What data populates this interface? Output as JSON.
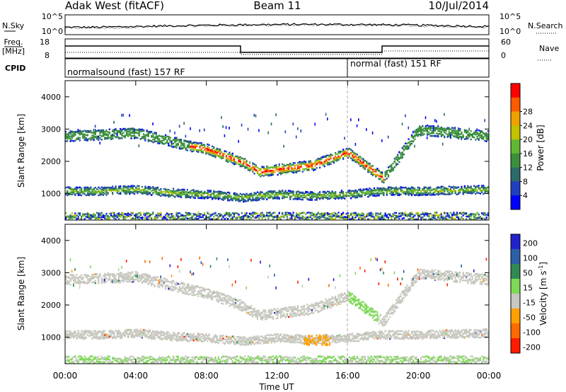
{
  "header": {
    "site": "Adak West (fitACF)",
    "beam": "Beam 11",
    "date": "10/Jul/2014"
  },
  "top_panels": {
    "nsky": {
      "label": "N.Sky",
      "ticks": [
        "10^5",
        "10^0"
      ],
      "right_label": "N.Search",
      "right_ticks": [
        "10^5",
        "10^0"
      ]
    },
    "freq": {
      "label_1": "Freq.",
      "label_2": "[MHz]",
      "ticks": [
        "18",
        "8"
      ],
      "right_label": "Nave",
      "right_ticks": [
        "60",
        "0"
      ]
    },
    "cpid": {
      "label": "CPID",
      "modes": [
        {
          "text": "normalsound (fast) 157 RF",
          "start_hour": 0
        },
        {
          "text": "normal (fast) 151 RF",
          "start_hour": 16
        }
      ]
    }
  },
  "chart_data": [
    {
      "type": "heatmap",
      "name": "power",
      "ylabel": "Slant Range [km]",
      "ylim": [
        180,
        4500
      ],
      "yticks": [
        1000,
        2000,
        3000,
        4000
      ],
      "xlim": [
        0,
        24
      ],
      "colorbar": {
        "label": "Power [dB]",
        "range": [
          0,
          32
        ],
        "ticks": [
          "4",
          "8",
          "12",
          "16",
          "20",
          "24",
          "28"
        ],
        "colors": [
          "#0000ff",
          "#1f3fbf",
          "#2d6a6a",
          "#3a8f3a",
          "#62b832",
          "#c2c200",
          "#f0a000",
          "#ff5a00",
          "#ff0000"
        ]
      },
      "echo_bands": [
        {
          "hours": [
            0,
            4,
            7,
            8,
            10,
            11,
            14,
            16,
            18,
            20,
            24
          ],
          "range_km": [
            2800,
            2900,
            2500,
            2400,
            2000,
            1700,
            1900,
            2300,
            1500,
            3000,
            2800
          ],
          "power_db": 14
        },
        {
          "hours": [
            0,
            2,
            4,
            6,
            8,
            10,
            12,
            14,
            16,
            18,
            20,
            24
          ],
          "range_km": [
            1100,
            1100,
            1150,
            1050,
            1000,
            900,
            1000,
            950,
            1000,
            1100,
            1100,
            1150
          ],
          "power_db": 9
        }
      ]
    },
    {
      "type": "heatmap",
      "name": "velocity",
      "ylabel": "Slant Range [km]",
      "ylim": [
        180,
        4500
      ],
      "yticks": [
        1000,
        2000,
        3000,
        4000
      ],
      "xlim": [
        0,
        24
      ],
      "xticks": [
        "00:00",
        "04:00",
        "08:00",
        "12:00",
        "16:00",
        "20:00",
        "00:00"
      ],
      "xlabel": "Time UT",
      "colorbar": {
        "label": "Velocity [m s^-1]",
        "ticks": [
          "200",
          "100",
          "50",
          "15",
          "-15",
          "-50",
          "-100",
          "-200"
        ],
        "colors": [
          "#2222cc",
          "#2c5fa8",
          "#2f8a55",
          "#7ed957",
          "#c8c8c0",
          "#ffa000",
          "#ff6a00",
          "#ff1a00"
        ]
      },
      "dominant_value": "ground scatter (-15 to 15)",
      "notable": [
        {
          "hours": [
            16,
            17.7
          ],
          "range_km": [
            1500,
            2500
          ],
          "velocity": "15 to 50"
        },
        {
          "hours": [
            13.5,
            15
          ],
          "range_km": [
            800,
            1100
          ],
          "velocity": "-50 to -100"
        }
      ]
    }
  ]
}
